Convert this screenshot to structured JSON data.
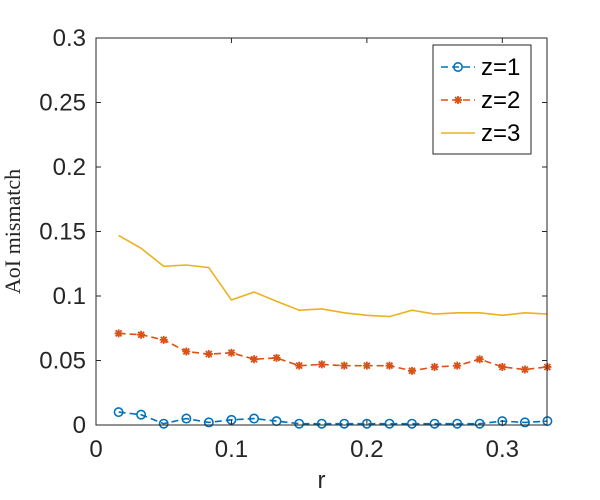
{
  "chart_data": {
    "type": "line",
    "title": "",
    "xlabel": "r",
    "ylabel": "AoI mismatch",
    "xlim": [
      0,
      0.333
    ],
    "ylim": [
      0,
      0.3
    ],
    "xticks": [
      0,
      0.1,
      0.2,
      0.3
    ],
    "xtick_labels": [
      "0",
      "0.1",
      "0.2",
      "0.3"
    ],
    "yticks": [
      0,
      0.05,
      0.1,
      0.15,
      0.2,
      0.25,
      0.3
    ],
    "ytick_labels": [
      "0",
      "0.05",
      "0.1",
      "0.15",
      "0.2",
      "0.25",
      "0.3"
    ],
    "grid": false,
    "legend_position": "top-right",
    "x": [
      0.0167,
      0.0333,
      0.05,
      0.0667,
      0.0833,
      0.1,
      0.1167,
      0.1333,
      0.15,
      0.1667,
      0.1833,
      0.2,
      0.2167,
      0.2333,
      0.25,
      0.2667,
      0.2833,
      0.3,
      0.3167,
      0.3333
    ],
    "series": [
      {
        "name": "z=1",
        "color": "#0072BD",
        "line_style": "dashed",
        "marker": "circle",
        "values": [
          0.01,
          0.008,
          0.001,
          0.005,
          0.002,
          0.004,
          0.005,
          0.003,
          0.001,
          0.001,
          0.001,
          0.001,
          0.001,
          0.001,
          0.001,
          0.001,
          0.001,
          0.003,
          0.002,
          0.003
        ]
      },
      {
        "name": "z=2",
        "color": "#D95319",
        "line_style": "dashed",
        "marker": "asterisk",
        "values": [
          0.071,
          0.07,
          0.066,
          0.057,
          0.055,
          0.056,
          0.051,
          0.052,
          0.046,
          0.047,
          0.046,
          0.046,
          0.046,
          0.042,
          0.045,
          0.046,
          0.051,
          0.045,
          0.043,
          0.045
        ]
      },
      {
        "name": "z=3",
        "color": "#EDB120",
        "line_style": "solid",
        "marker": "none",
        "values": [
          0.147,
          0.137,
          0.123,
          0.124,
          0.122,
          0.097,
          0.103,
          0.096,
          0.089,
          0.09,
          0.087,
          0.085,
          0.084,
          0.089,
          0.086,
          0.087,
          0.087,
          0.085,
          0.087,
          0.086
        ]
      }
    ]
  }
}
